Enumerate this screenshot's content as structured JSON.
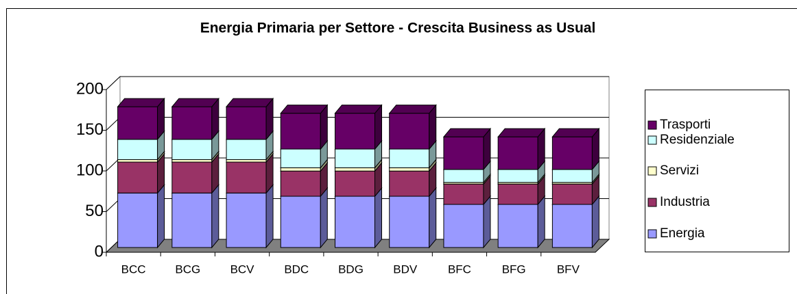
{
  "chart_data": {
    "type": "bar3d_stacked",
    "title": "Energia Primaria per Settore - Crescita Business as Usual",
    "categories": [
      "BCC",
      "BCG",
      "BCV",
      "BDC",
      "BDG",
      "BDV",
      "BFC",
      "BFG",
      "BFV"
    ],
    "series": [
      {
        "name": "Energia",
        "color": "#9999ff",
        "values": [
          67,
          67,
          67,
          63,
          63,
          63,
          53,
          53,
          53
        ]
      },
      {
        "name": "Industria",
        "color": "#993366",
        "values": [
          38,
          38,
          38,
          31,
          31,
          31,
          25,
          25,
          25
        ]
      },
      {
        "name": "Servizi",
        "color": "#ffffcc",
        "values": [
          3,
          3,
          3,
          4,
          4,
          4,
          2,
          2,
          2
        ]
      },
      {
        "name": "Residenziale",
        "color": "#ccffff",
        "values": [
          25,
          25,
          25,
          23,
          23,
          23,
          16,
          16,
          16
        ]
      },
      {
        "name": "Trasporti",
        "color": "#660066",
        "values": [
          40,
          40,
          40,
          44,
          44,
          44,
          40,
          40,
          40
        ]
      }
    ],
    "ylim": [
      0,
      200
    ],
    "yticks": [
      0,
      50,
      100,
      150,
      200
    ],
    "grid": true,
    "legend": "right"
  }
}
